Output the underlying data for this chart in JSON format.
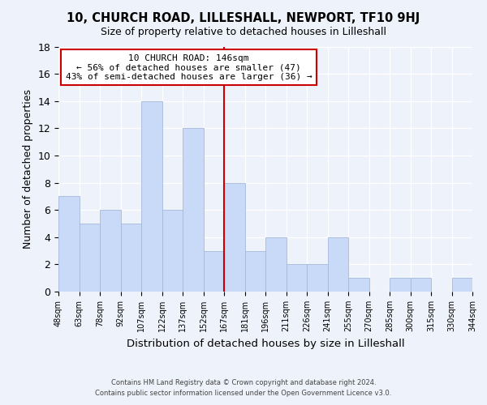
{
  "title": "10, CHURCH ROAD, LILLESHALL, NEWPORT, TF10 9HJ",
  "subtitle": "Size of property relative to detached houses in Lilleshall",
  "xlabel": "Distribution of detached houses by size in Lilleshall",
  "ylabel": "Number of detached properties",
  "bar_values": [
    7,
    5,
    6,
    5,
    14,
    6,
    12,
    3,
    8,
    3,
    4,
    2,
    2,
    4,
    1,
    0,
    1,
    1,
    0,
    1
  ],
  "bar_labels": [
    "48sqm",
    "63sqm",
    "78sqm",
    "92sqm",
    "107sqm",
    "122sqm",
    "137sqm",
    "152sqm",
    "167sqm",
    "181sqm",
    "196sqm",
    "211sqm",
    "226sqm",
    "241sqm",
    "255sqm",
    "270sqm",
    "285sqm",
    "300sqm",
    "315sqm",
    "330sqm",
    "344sqm"
  ],
  "bar_color": "#c9daf8",
  "bar_edge_color": "#a4b8d8",
  "vline_x": 7.5,
  "vline_color": "#cc0000",
  "annotation_title": "10 CHURCH ROAD: 146sqm",
  "annotation_line1": "← 56% of detached houses are smaller (47)",
  "annotation_line2": "43% of semi-detached houses are larger (36) →",
  "annotation_box_color": "#ffffff",
  "annotation_box_edge": "#cc0000",
  "ylim": [
    0,
    18
  ],
  "yticks": [
    0,
    2,
    4,
    6,
    8,
    10,
    12,
    14,
    16,
    18
  ],
  "footer_line1": "Contains HM Land Registry data © Crown copyright and database right 2024.",
  "footer_line2": "Contains public sector information licensed under the Open Government Licence v3.0.",
  "background_color": "#eef2fa",
  "plot_background": "#eef2fa"
}
